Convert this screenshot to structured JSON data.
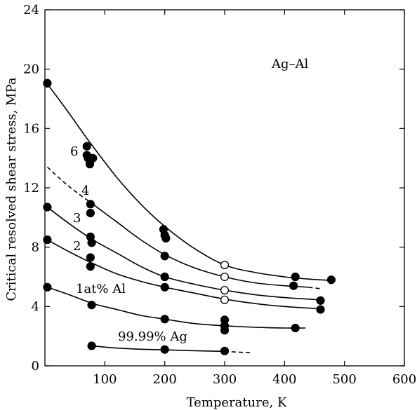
{
  "chart_data": {
    "type": "line",
    "title": "",
    "xlabel": "Temperature, K",
    "ylabel": "Critical resolved shear stress, MPa",
    "annotation": "Ag–Al",
    "xlim": [
      0,
      600
    ],
    "ylim": [
      0,
      24
    ],
    "xticks": [
      100,
      200,
      300,
      400,
      500,
      600
    ],
    "yticks": [
      0,
      4,
      8,
      12,
      16,
      20,
      24
    ],
    "grid": false,
    "series": [
      {
        "name": "6",
        "curve": [
          [
            4,
            19.0
          ],
          [
            30,
            17.6
          ],
          [
            60,
            15.9
          ],
          [
            78,
            14.9
          ],
          [
            120,
            12.7
          ],
          [
            160,
            10.9
          ],
          [
            200,
            9.4
          ],
          [
            250,
            7.9
          ],
          [
            300,
            6.8
          ],
          [
            350,
            6.3
          ],
          [
            400,
            6.0
          ],
          [
            440,
            5.85
          ],
          [
            480,
            5.75
          ]
        ],
        "dashed": [],
        "points_filled": [
          [
            4,
            19.05
          ],
          [
            70,
            14.8
          ],
          [
            70,
            14.2
          ],
          [
            72,
            14.0
          ],
          [
            75,
            13.6
          ],
          [
            80,
            14.0
          ],
          [
            198,
            9.2
          ],
          [
            200,
            8.8
          ],
          [
            202,
            8.6
          ],
          [
            418,
            6.0
          ],
          [
            478,
            5.8
          ]
        ],
        "points_open": [
          [
            300,
            6.8
          ]
        ]
      },
      {
        "name": "4",
        "curve": [
          [
            80,
            10.9
          ],
          [
            120,
            9.7
          ],
          [
            160,
            8.5
          ],
          [
            200,
            7.5
          ],
          [
            250,
            6.6
          ],
          [
            300,
            6.0
          ],
          [
            350,
            5.6
          ],
          [
            400,
            5.4
          ],
          [
            440,
            5.3
          ]
        ],
        "dashed": [
          [
            4,
            13.4
          ],
          [
            40,
            12.1
          ],
          [
            80,
            10.9
          ]
        ],
        "dashed_tail": [
          [
            440,
            5.3
          ],
          [
            460,
            5.2
          ]
        ],
        "points_filled": [
          [
            76,
            10.9
          ],
          [
            76,
            10.3
          ],
          [
            200,
            7.4
          ],
          [
            415,
            5.4
          ]
        ],
        "points_open": [
          [
            300,
            6.0
          ]
        ]
      },
      {
        "name": "3",
        "curve": [
          [
            4,
            10.7
          ],
          [
            40,
            9.6
          ],
          [
            80,
            8.5
          ],
          [
            120,
            7.6
          ],
          [
            160,
            6.7
          ],
          [
            200,
            6.0
          ],
          [
            250,
            5.5
          ],
          [
            300,
            5.1
          ],
          [
            350,
            4.8
          ],
          [
            400,
            4.6
          ],
          [
            460,
            4.45
          ]
        ],
        "dashed": [],
        "points_filled": [
          [
            4,
            10.7
          ],
          [
            76,
            8.7
          ],
          [
            78,
            8.3
          ],
          [
            200,
            6.0
          ],
          [
            460,
            4.4
          ]
        ],
        "points_open": [
          [
            300,
            5.1
          ]
        ]
      },
      {
        "name": "2",
        "curve": [
          [
            4,
            8.5
          ],
          [
            40,
            7.7
          ],
          [
            80,
            6.9
          ],
          [
            120,
            6.2
          ],
          [
            160,
            5.7
          ],
          [
            200,
            5.3
          ],
          [
            250,
            4.9
          ],
          [
            300,
            4.5
          ],
          [
            350,
            4.2
          ],
          [
            400,
            4.0
          ],
          [
            460,
            3.85
          ]
        ],
        "dashed": [],
        "points_filled": [
          [
            4,
            8.5
          ],
          [
            76,
            7.3
          ],
          [
            76,
            6.7
          ],
          [
            200,
            5.3
          ],
          [
            460,
            3.8
          ]
        ],
        "points_open": [
          [
            300,
            4.45
          ]
        ]
      },
      {
        "name": "1at% Al",
        "curve": [
          [
            4,
            5.3
          ],
          [
            40,
            4.8
          ],
          [
            80,
            4.2
          ],
          [
            120,
            3.8
          ],
          [
            160,
            3.4
          ],
          [
            200,
            3.15
          ],
          [
            250,
            2.85
          ],
          [
            300,
            2.7
          ],
          [
            350,
            2.6
          ],
          [
            400,
            2.55
          ],
          [
            435,
            2.55
          ]
        ],
        "dashed": [],
        "points_filled": [
          [
            4,
            5.3
          ],
          [
            78,
            4.1
          ],
          [
            200,
            3.15
          ],
          [
            300,
            3.1
          ],
          [
            300,
            2.7
          ],
          [
            300,
            2.4
          ],
          [
            418,
            2.55
          ]
        ],
        "points_open": []
      },
      {
        "name": "99.99% Ag",
        "curve": [
          [
            78,
            1.35
          ],
          [
            120,
            1.2
          ],
          [
            160,
            1.12
          ],
          [
            200,
            1.08
          ],
          [
            250,
            1.02
          ],
          [
            300,
            0.98
          ]
        ],
        "dashed": [],
        "dashed_tail": [
          [
            300,
            0.98
          ],
          [
            320,
            0.93
          ],
          [
            345,
            0.88
          ]
        ],
        "points_filled": [
          [
            78,
            1.35
          ],
          [
            200,
            1.1
          ],
          [
            300,
            1.0
          ]
        ],
        "points_open": []
      }
    ]
  }
}
